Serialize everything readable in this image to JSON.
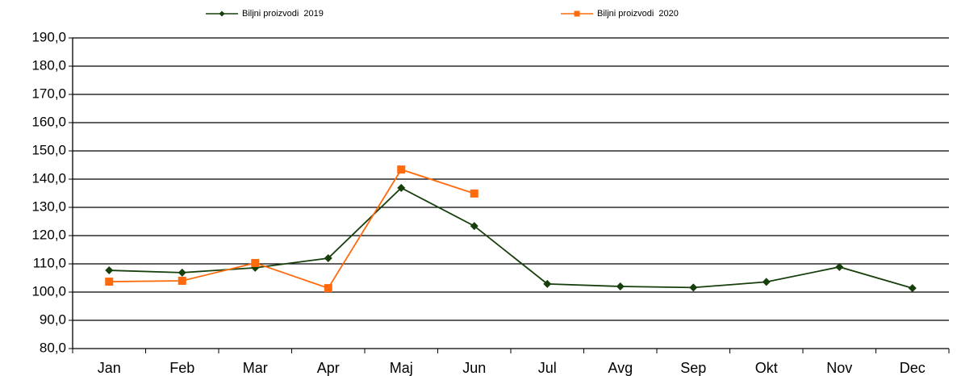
{
  "chart_data": {
    "type": "line",
    "categories": [
      "Jan",
      "Feb",
      "Mar",
      "Apr",
      "Maj",
      "Jun",
      "Jul",
      "Avg",
      "Sep",
      "Okt",
      "Nov",
      "Dec"
    ],
    "series": [
      {
        "name": "Biljni proizvodi  2019",
        "color": "#173f0c",
        "marker": "diamond",
        "values": [
          107.7,
          106.9,
          108.6,
          112.0,
          136.9,
          123.4,
          102.9,
          102.0,
          101.6,
          103.6,
          108.9,
          101.4
        ]
      },
      {
        "name": "Biljni proizvodi  2020",
        "color": "#ff6a0d",
        "marker": "square",
        "values": [
          103.7,
          104.0,
          110.3,
          101.4,
          143.4,
          134.9,
          null,
          null,
          null,
          null,
          null,
          null
        ]
      }
    ],
    "ylim": [
      80,
      190
    ],
    "yticks": [
      {
        "value": 80,
        "label": "80,0"
      },
      {
        "value": 90,
        "label": "90,0"
      },
      {
        "value": 100,
        "label": "100,0"
      },
      {
        "value": 110,
        "label": "110,0"
      },
      {
        "value": 120,
        "label": "120,0"
      },
      {
        "value": 130,
        "label": "130,0"
      },
      {
        "value": 140,
        "label": "140,0"
      },
      {
        "value": 150,
        "label": "150,0"
      },
      {
        "value": 160,
        "label": "160,0"
      },
      {
        "value": 170,
        "label": "170,0"
      },
      {
        "value": 180,
        "label": "180,0"
      },
      {
        "value": 190,
        "label": "190,0"
      }
    ],
    "grid": true,
    "legend": "top"
  }
}
